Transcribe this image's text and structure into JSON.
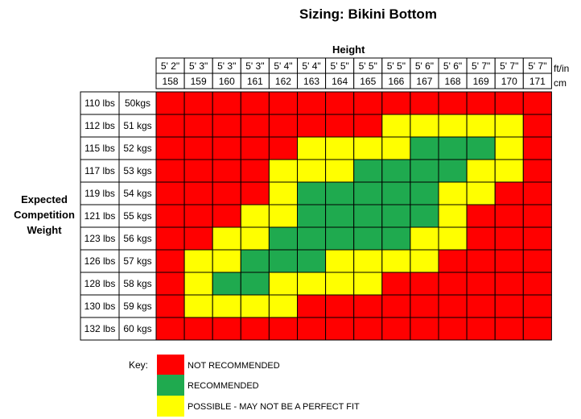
{
  "title": "Sizing: Bikini Bottom",
  "colors": {
    "not_recommended": "#ff0000",
    "recommended": "#1faa4f",
    "possible": "#ffff00",
    "grid": "#000000"
  },
  "chart_data": {
    "type": "heatmap",
    "title": "Sizing: Bikini Bottom",
    "xlabel": "Height",
    "ylabel": "Expected Competition Weight",
    "x_units": [
      "ft/in",
      "cm"
    ],
    "height_ft_in": [
      "5' 2\"",
      "5' 3\"",
      "5' 3\"",
      "5' 3\"",
      "5' 4\"",
      "5' 4\"",
      "5' 5\"",
      "5' 5\"",
      "5' 5\"",
      "5' 6\"",
      "5' 6\"",
      "5' 7\"",
      "5' 7\"",
      "5' 7\""
    ],
    "height_cm": [
      "158",
      "159",
      "160",
      "161",
      "162",
      "163",
      "164",
      "165",
      "166",
      "167",
      "168",
      "169",
      "170",
      "171"
    ],
    "weight_lbs": [
      "110 lbs",
      "112 lbs",
      "115 lbs",
      "117 lbs",
      "119 lbs",
      "121 lbs",
      "123 lbs",
      "126 lbs",
      "128 lbs",
      "130 lbs",
      "132 lbs"
    ],
    "weight_kgs": [
      "50kgs",
      "51 kgs",
      "52 kgs",
      "53 kgs",
      "54 kgs",
      "55 kgs",
      "56 kgs",
      "57 kgs",
      "58 kgs",
      "59 kgs",
      "60 kgs"
    ],
    "legend": [
      {
        "code": "N",
        "label": "NOT RECOMMENDED"
      },
      {
        "code": "R",
        "label": "RECOMMENDED"
      },
      {
        "code": "P",
        "label": "POSSIBLE - MAY NOT BE A PERFECT FIT"
      }
    ],
    "grid": [
      "NNNNNNNNNNNNNN",
      "NNNNNNNNPPPPPN",
      "NNNNNPPPPRRRPN",
      "NNNNPPPRRRRPPN",
      "NNNNPRRRRRPPNN",
      "NNNPPRRRRRPNNN",
      "NNPPRRRRRPPNNN",
      "NPPRRRPPPPNNNN",
      "NPRRPPPPNNNNNN",
      "NPPPPNNNNNNNNN",
      "NNNNNNNNNNNNNN"
    ]
  },
  "key": {
    "title": "Key:"
  }
}
